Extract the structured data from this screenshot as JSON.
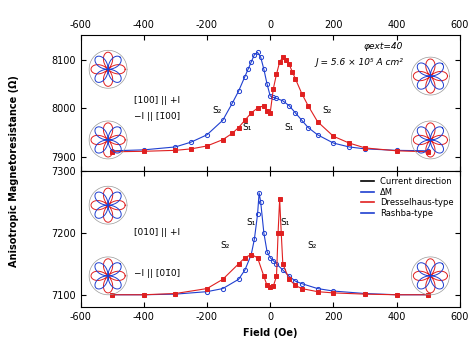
{
  "chart_data": [
    {
      "type": "line",
      "xlim": [
        -600,
        600
      ],
      "xticks": [
        -600,
        -400,
        -200,
        0,
        200,
        400,
        600
      ],
      "ylim": [
        7870,
        8150
      ],
      "yticks": [
        7900,
        8000,
        8100
      ],
      "tick_labels": true,
      "series": [
        {
          "color": "#1f3fd0",
          "marker": "circle_open",
          "line_style": "solid",
          "x": [
            500,
            400,
            300,
            250,
            200,
            150,
            120,
            100,
            80,
            60,
            40,
            20,
            10,
            0,
            -10,
            -20,
            -30,
            -40,
            -50,
            -60,
            -70,
            -80,
            -100,
            -120,
            -150,
            -200,
            -250,
            -300,
            -400,
            -500
          ],
          "values": [
            7912,
            7913,
            7916,
            7920,
            7928,
            7945,
            7960,
            7975,
            7990,
            8005,
            8015,
            8020,
            8022,
            8025,
            8050,
            8080,
            8105,
            8115,
            8110,
            8095,
            8080,
            8065,
            8035,
            8010,
            7975,
            7945,
            7930,
            7920,
            7914,
            7912
          ]
        },
        {
          "color": "#e02020",
          "marker": "square",
          "line_style": "solid",
          "x": [
            -500,
            -400,
            -300,
            -250,
            -200,
            -150,
            -120,
            -100,
            -80,
            -60,
            -40,
            -20,
            -10,
            0,
            10,
            20,
            30,
            40,
            50,
            60,
            70,
            80,
            100,
            120,
            150,
            200,
            250,
            300,
            400,
            500
          ],
          "values": [
            7910,
            7911,
            7913,
            7916,
            7922,
            7935,
            7948,
            7960,
            7975,
            7990,
            8000,
            8005,
            7995,
            7990,
            8040,
            8070,
            8095,
            8105,
            8100,
            8090,
            8075,
            8060,
            8030,
            8005,
            7972,
            7942,
            7928,
            7918,
            7912,
            7910
          ]
        }
      ],
      "annotations": [
        "φext=40",
        "J = 5.6 × 10⁵ A cm²",
        "[100] || +I",
        "−I || [1̄00]",
        "S₂",
        "S₁",
        "S₁",
        "S₂"
      ]
    },
    {
      "type": "line",
      "xlabel": "Field (Oe)",
      "xlim": [
        -600,
        600
      ],
      "xticks": [
        -600,
        -400,
        -200,
        0,
        200,
        400,
        600
      ],
      "ylim": [
        7080,
        7300
      ],
      "yticks": [
        7100,
        7200,
        7300
      ],
      "tick_labels": true,
      "legend": "upper right",
      "legend_entries": [
        {
          "name": "Current direction",
          "color": "#000000"
        },
        {
          "name": "ΔM",
          "color": "#1f3fd0"
        },
        {
          "name": "Dresselhaus-type",
          "color": "#e02020"
        },
        {
          "name": "Rashba-type",
          "color": "#1f3fd0"
        }
      ],
      "series": [
        {
          "color": "#1f3fd0",
          "marker": "circle_open",
          "line_style": "solid",
          "x": [
            500,
            400,
            300,
            200,
            150,
            100,
            80,
            60,
            40,
            20,
            10,
            0,
            -10,
            -20,
            -30,
            -35,
            -40,
            -50,
            -60,
            -80,
            -100,
            -150,
            -200,
            -300,
            -400,
            -500
          ],
          "values": [
            7100,
            7100,
            7102,
            7106,
            7110,
            7118,
            7122,
            7130,
            7140,
            7150,
            7155,
            7160,
            7170,
            7200,
            7250,
            7265,
            7230,
            7190,
            7165,
            7140,
            7125,
            7110,
            7105,
            7101,
            7100,
            7100
          ]
        },
        {
          "color": "#e02020",
          "marker": "square",
          "line_style": "solid",
          "x": [
            -500,
            -400,
            -300,
            -200,
            -150,
            -100,
            -80,
            -60,
            -40,
            -20,
            -10,
            0,
            10,
            20,
            25,
            30,
            35,
            40,
            60,
            80,
            100,
            150,
            200,
            300,
            400,
            500
          ],
          "values": [
            7100,
            7100,
            7102,
            7110,
            7125,
            7150,
            7160,
            7165,
            7160,
            7130,
            7115,
            7112,
            7114,
            7130,
            7200,
            7255,
            7200,
            7150,
            7125,
            7115,
            7110,
            7105,
            7103,
            7101,
            7100,
            7100
          ]
        }
      ],
      "annotations": [
        "[010] || +I",
        "−I || [01̄0]",
        "S₂",
        "S₁",
        "S₁",
        "S₂"
      ]
    }
  ],
  "shared": {
    "ylabel": "Anisotropic Magnetoresistance (Ω)"
  }
}
